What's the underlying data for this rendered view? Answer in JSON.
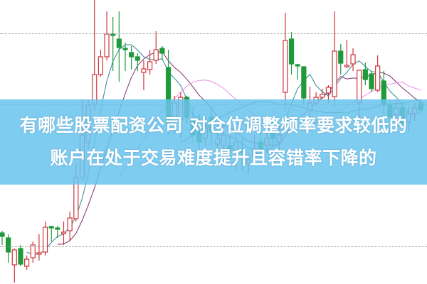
{
  "banner": {
    "line1": "有哪些股票配资公司 对仓位调整频率要求较低的",
    "line2": "账户在处于交易难度提升且容错率下降的"
  },
  "colors": {
    "up": "#d0343a",
    "down": "#1f9a3a",
    "ma5": "#2f8597",
    "ma10": "#7b2f6e",
    "ma20": "#ea8fe6",
    "ma30": "#3f7f3a",
    "ma60": "#3a92a6",
    "banner": "#69c4ee"
  },
  "chart_data": {
    "type": "candlestick",
    "grid": "dotted horizontal",
    "moving_averages": [
      5,
      10,
      20,
      30
    ],
    "candles": [
      [
        8.6,
        8.75,
        7.75,
        8.35
      ],
      [
        8.25,
        8.5,
        6.5,
        7.25
      ],
      [
        6.35,
        7.5,
        5.1,
        7.4
      ],
      [
        7.5,
        7.75,
        6.25,
        6.4
      ],
      [
        6.25,
        7.0,
        6.0,
        6.75
      ],
      [
        6.85,
        8.0,
        6.5,
        7.75
      ],
      [
        7.1,
        8.5,
        6.65,
        7.2
      ],
      [
        7.25,
        9.4,
        7.0,
        9.0
      ],
      [
        9.05,
        9.1,
        8.0,
        8.95
      ],
      [
        8.95,
        9.1,
        8.25,
        8.85
      ],
      [
        8.55,
        9.4,
        7.75,
        8.65
      ],
      [
        8.75,
        10.1,
        8.0,
        9.65
      ],
      [
        9.6,
        13.5,
        9.4,
        12.5
      ],
      [
        12.5,
        18,
        12.25,
        15.5
      ],
      [
        15.0,
        18,
        14.5,
        17.6
      ],
      [
        17.65,
        25,
        17.25,
        19.75
      ],
      [
        19.75,
        21.5,
        19.6,
        21.0
      ],
      [
        21,
        24.2,
        20.75,
        22.6
      ],
      [
        22.6,
        23.8,
        20,
        22.5
      ],
      [
        22.25,
        24.2,
        19.25,
        21.65
      ],
      [
        21.6,
        22,
        20,
        21.5
      ],
      [
        21.3,
        21.75,
        20.1,
        21.0
      ],
      [
        21,
        21.25,
        20,
        20.75
      ],
      [
        19.9,
        20.75,
        18.65,
        20.15
      ],
      [
        20.1,
        21.5,
        19.75,
        20.65
      ],
      [
        20.75,
        22.8,
        20.5,
        21.5
      ],
      [
        21.6,
        21.75,
        20.75,
        21.25
      ],
      [
        20.25,
        21.5,
        15.5,
        16.25
      ],
      [
        16.5,
        18.25,
        15.5,
        17.75
      ],
      [
        16.6,
        18.5,
        15.25,
        18.15
      ],
      [
        18.15,
        18.25,
        16.25,
        16.75
      ],
      [
        16.5,
        17.5,
        15,
        15.5
      ],
      [
        15.75,
        17,
        14.25,
        15
      ],
      [
        15.25,
        16.75,
        14.75,
        16
      ],
      [
        16.75,
        17.5,
        14.75,
        15.75
      ],
      [
        14.85,
        15.75,
        14.4,
        15.25
      ],
      [
        14.75,
        16.25,
        13.5,
        15.5
      ],
      [
        14.75,
        15.5,
        13.75,
        14.5
      ],
      [
        14.25,
        15.75,
        13,
        15
      ],
      [
        14.5,
        15.25,
        13,
        14.25
      ],
      [
        13.5,
        14.25,
        12.75,
        13.75
      ],
      [
        14,
        15.5,
        13.5,
        14.5
      ],
      [
        15,
        16,
        13.75,
        14.5
      ],
      [
        14.75,
        16,
        14.25,
        15.25
      ],
      [
        15.75,
        16.5,
        14.75,
        15.25
      ],
      [
        15,
        16.25,
        14.5,
        15.5
      ],
      [
        18.5,
        24.1,
        17.25,
        22.15
      ],
      [
        22.25,
        22.75,
        19.75,
        20.5
      ],
      [
        20.45,
        20.5,
        19.4,
        20.35
      ],
      [
        20.3,
        20.3,
        17.6,
        18.1
      ],
      [
        17.25,
        18.9,
        16.75,
        17.75
      ],
      [
        17.75,
        18.5,
        17.5,
        18.15
      ],
      [
        18.15,
        18.75,
        18,
        18.35
      ],
      [
        18.45,
        19,
        17.75,
        18.85
      ],
      [
        18.2,
        24.2,
        17.5,
        21.4
      ],
      [
        21.4,
        21.9,
        19.75,
        20.55
      ],
      [
        20.3,
        22.2,
        20.2,
        20.4
      ],
      [
        20.5,
        21.6,
        20,
        21.15
      ],
      [
        17.75,
        20.05,
        16.75,
        20.05
      ],
      [
        20.1,
        20.6,
        19,
        19.4
      ],
      [
        19.8,
        20,
        18.5,
        18.75
      ],
      [
        18.65,
        21.1,
        18.5,
        20.35
      ],
      [
        19.3,
        20,
        17,
        17.6
      ],
      [
        17.6,
        18,
        16.5,
        16.75
      ],
      [
        16.9,
        18,
        16.25,
        17.4
      ],
      [
        17.4,
        17.75,
        16,
        16.25
      ],
      [
        16.4,
        17.5,
        15.75,
        17
      ],
      [
        17,
        17.75,
        16.5,
        17.4
      ],
      [
        17.75,
        18,
        17,
        17.25
      ]
    ]
  }
}
